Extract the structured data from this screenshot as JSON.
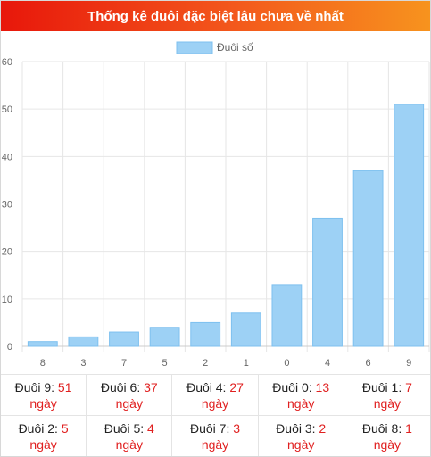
{
  "header": {
    "title": "Thống kê đuôi đặc biệt lâu chưa về nhất"
  },
  "chart_data": {
    "type": "bar",
    "title": "",
    "xlabel": "",
    "ylabel": "",
    "categories": [
      "8",
      "3",
      "7",
      "5",
      "2",
      "1",
      "0",
      "4",
      "6",
      "9"
    ],
    "series": [
      {
        "name": "Đuôi số",
        "values": [
          1,
          2,
          3,
          4,
          5,
          7,
          13,
          27,
          37,
          51
        ]
      }
    ],
    "ylim": [
      0,
      60
    ],
    "yticks": [
      0,
      10,
      20,
      30,
      40,
      50,
      60
    ],
    "grid": true,
    "legend_position": "top-center",
    "colors": {
      "bar_fill": "#9dd1f5",
      "bar_stroke": "#7ec0ef",
      "grid": "#e6e6e6",
      "tick_text": "#666666"
    }
  },
  "stats": [
    {
      "label": "Đuôi 9:",
      "value": "51",
      "unit": "ngày"
    },
    {
      "label": "Đuôi 6:",
      "value": "37",
      "unit": "ngày"
    },
    {
      "label": "Đuôi 4:",
      "value": "27",
      "unit": "ngày"
    },
    {
      "label": "Đuôi 0:",
      "value": "13",
      "unit": "ngày"
    },
    {
      "label": "Đuôi 1:",
      "value": "7",
      "unit": "ngày"
    },
    {
      "label": "Đuôi 2:",
      "value": "5",
      "unit": "ngày"
    },
    {
      "label": "Đuôi 5:",
      "value": "4",
      "unit": "ngày"
    },
    {
      "label": "Đuôi 7:",
      "value": "3",
      "unit": "ngày"
    },
    {
      "label": "Đuôi 3:",
      "value": "2",
      "unit": "ngày"
    },
    {
      "label": "Đuôi 8:",
      "value": "1",
      "unit": "ngày"
    }
  ]
}
